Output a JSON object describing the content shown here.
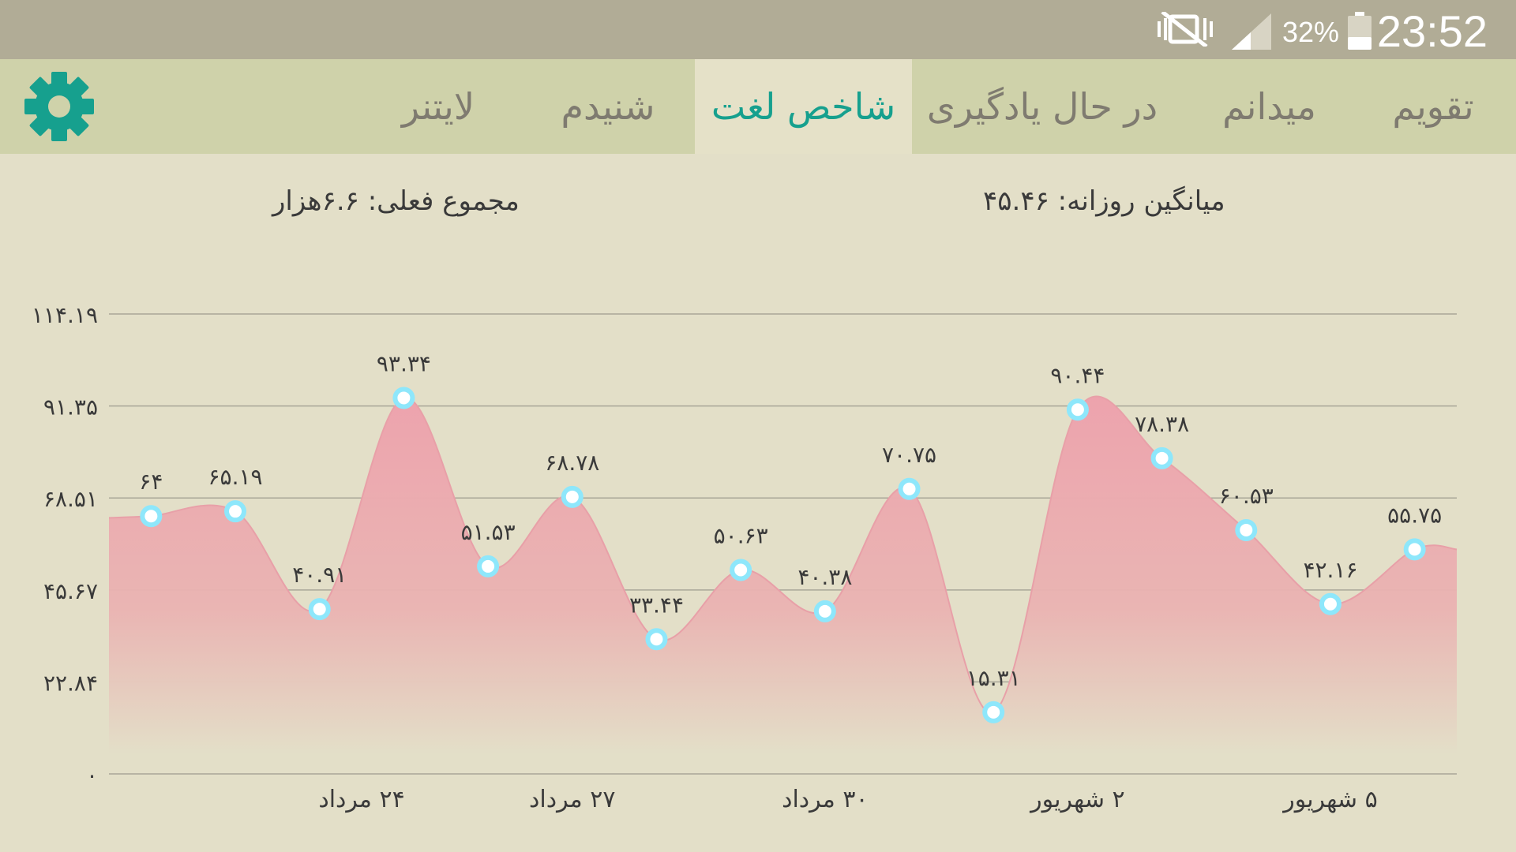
{
  "status_bar": {
    "time": "23:52",
    "battery_percent": "32%",
    "icons": [
      "mute-vibrate-icon",
      "signal-icon",
      "battery-icon"
    ]
  },
  "tabs": [
    {
      "label": "تقویم",
      "active": false
    },
    {
      "label": "میدانم",
      "active": false
    },
    {
      "label": "در حال یادگیری",
      "active": false
    },
    {
      "label": "شاخص لغت",
      "active": true
    },
    {
      "label": "شنیدم",
      "active": false
    },
    {
      "label": "لایتنر",
      "active": false
    }
  ],
  "settings_icon": "gear-icon",
  "summary": {
    "daily_average": "میانگین روزانه: ۴۵.۴۶",
    "current_total": "مجموع فعلی: ۶.۶هزار"
  },
  "colors": {
    "accent": "#16a08e",
    "area_fill": "#eda3ad",
    "point_stroke": "#8ee7fb",
    "background": "#e3dfc8",
    "tab_bar": "#cfd2aa",
    "status_bar": "#b1ac96"
  },
  "chart_data": {
    "type": "area",
    "smooth": true,
    "grid": "horizontal",
    "ylim": [
      0,
      114.19
    ],
    "y_ticks": [
      0,
      22.84,
      45.67,
      68.51,
      91.35,
      114.19
    ],
    "y_tick_labels": [
      "۰",
      "۲۲.۸۴",
      "۴۵.۶۷",
      "۶۸.۵۱",
      "۹۱.۳۵",
      "۱۱۴.۱۹"
    ],
    "x_tick_labels": [
      {
        "index": 2.5,
        "label": "۲۴ مرداد"
      },
      {
        "index": 5,
        "label": "۲۷ مرداد"
      },
      {
        "index": 8,
        "label": "۳۰ مرداد"
      },
      {
        "index": 11,
        "label": "۲ شهریور"
      },
      {
        "index": 14,
        "label": "۵ شهریور"
      }
    ],
    "values": [
      64,
      65.19,
      40.91,
      93.34,
      51.53,
      68.78,
      33.44,
      50.63,
      40.38,
      70.75,
      15.31,
      90.44,
      78.38,
      60.53,
      42.16,
      55.75
    ],
    "point_labels": [
      "۶۴",
      "۶۵.۱۹",
      "۴۰.۹۱",
      "۹۳.۳۴",
      "۵۱.۵۳",
      "۶۸.۷۸",
      "۳۳.۴۴",
      "۵۰.۶۳",
      "۴۰.۳۸",
      "۷۰.۷۵",
      "۱۵.۳۱",
      "۹۰.۴۴",
      "۷۸.۳۸",
      "۶۰.۵۳",
      "۴۲.۱۶",
      "۵۵.۷۵"
    ]
  }
}
